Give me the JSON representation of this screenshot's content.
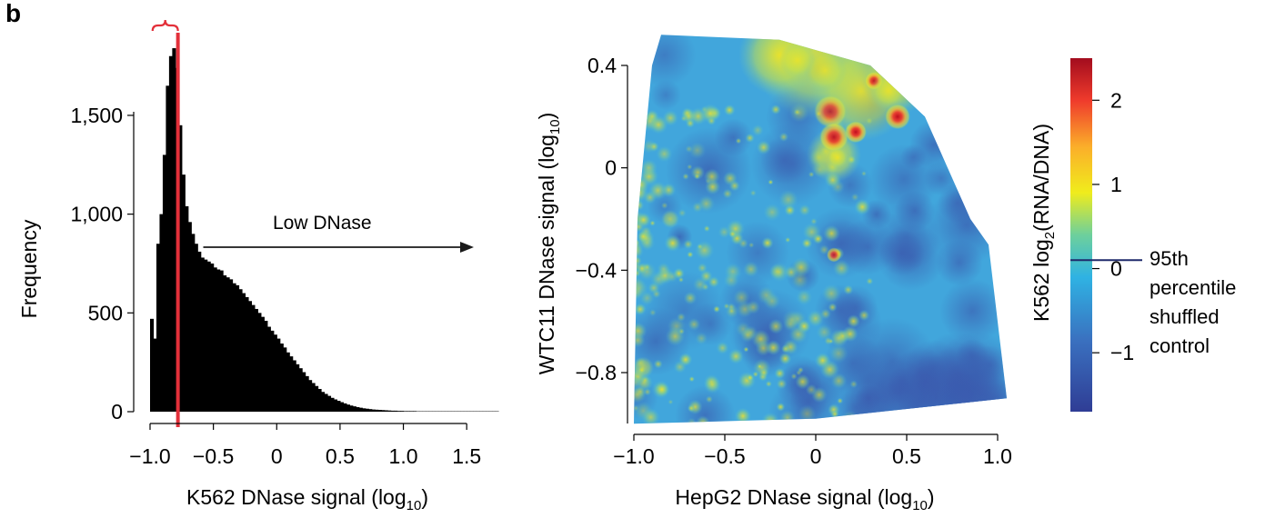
{
  "panel_label": "b",
  "colors": {
    "bars": "#000000",
    "marker": "#e3303a",
    "cutoff_line": "#1f2a6b",
    "arrow": "#1a1a1a"
  },
  "chart_data": [
    {
      "type": "bar",
      "title": "",
      "xlabel_main": "K562 DNase signal (log",
      "xlabel_sub": "10",
      "xlabel_end": ")",
      "ylabel": "Frequency",
      "xlim": [
        -1.0,
        1.75
      ],
      "ylim": [
        0,
        1900
      ],
      "xticks": [
        -1.0,
        -0.5,
        0,
        0.5,
        1.0,
        1.5
      ],
      "xtick_labels": [
        "−1.0",
        "−0.5",
        "0",
        "0.5",
        "1.0",
        "1.5"
      ],
      "yticks": [
        0,
        500,
        1000,
        1500
      ],
      "ytick_labels": [
        "0",
        "500",
        "1,000",
        "1,500"
      ],
      "bin_width": 0.025,
      "x": [
        -0.9875,
        -0.9625,
        -0.9375,
        -0.9125,
        -0.8875,
        -0.8625,
        -0.8375,
        -0.8125,
        -0.7875,
        -0.7625,
        -0.7375,
        -0.7125,
        -0.6875,
        -0.6625,
        -0.6375,
        -0.6125,
        -0.5875,
        -0.5625,
        -0.5375,
        -0.5125,
        -0.4875,
        -0.4625,
        -0.4375,
        -0.4125,
        -0.3875,
        -0.3625,
        -0.3375,
        -0.3125,
        -0.2875,
        -0.2625,
        -0.2375,
        -0.2125,
        -0.1875,
        -0.1625,
        -0.1375,
        -0.1125,
        -0.0875,
        -0.0625,
        -0.0375,
        -0.0125,
        0.0125,
        0.0375,
        0.0625,
        0.0875,
        0.1125,
        0.1375,
        0.1625,
        0.1875,
        0.2125,
        0.2375,
        0.2625,
        0.2875,
        0.3125,
        0.3375,
        0.3625,
        0.3875,
        0.4125,
        0.4375,
        0.4625,
        0.4875,
        0.5125,
        0.5375,
        0.5625,
        0.5875,
        0.6125,
        0.6375,
        0.6625,
        0.6875,
        0.7125,
        0.7375,
        0.7625,
        0.7875,
        0.8125,
        0.8375,
        0.8625,
        0.8875,
        0.9125,
        0.9375,
        0.9625,
        0.9875,
        1.0125,
        1.0375,
        1.0625,
        1.0875,
        1.1125,
        1.1375,
        1.1625,
        1.1875,
        1.2125,
        1.2375,
        1.2625,
        1.2875,
        1.3125,
        1.3375,
        1.3625,
        1.3875,
        1.4125,
        1.4375,
        1.4625,
        1.4875,
        1.5125,
        1.5375,
        1.5625,
        1.5875,
        1.6125,
        1.6375,
        1.6625,
        1.6875,
        1.7125,
        1.7375
      ],
      "values": [
        470,
        370,
        850,
        1000,
        1300,
        1650,
        1800,
        1840,
        1740,
        1450,
        1200,
        1040,
        960,
        900,
        850,
        810,
        780,
        770,
        760,
        750,
        730,
        720,
        715,
        690,
        680,
        670,
        650,
        640,
        620,
        600,
        580,
        560,
        540,
        520,
        500,
        480,
        460,
        430,
        410,
        390,
        370,
        345,
        325,
        300,
        280,
        260,
        240,
        220,
        200,
        180,
        160,
        145,
        130,
        115,
        100,
        90,
        80,
        70,
        62,
        55,
        48,
        42,
        36,
        31,
        27,
        23,
        20,
        17,
        15,
        13,
        11,
        10,
        9,
        8,
        7,
        6,
        5,
        5,
        4,
        4,
        3,
        3,
        3,
        3,
        2,
        2,
        2,
        2,
        2,
        2,
        2,
        2,
        2,
        2,
        2,
        2,
        2,
        2,
        2,
        2,
        2,
        2,
        2,
        2,
        2,
        2,
        2,
        2,
        2,
        2
      ],
      "cutoff_x": -0.78,
      "annotation": "Low DNase"
    },
    {
      "type": "heatmap",
      "title": "",
      "xlabel_main": "HepG2 DNase signal (log",
      "xlabel_sub": "10",
      "xlabel_end": ")",
      "ylabel_main": "WTC11 DNase signal (log",
      "ylabel_sub": "10",
      "ylabel_end": ")",
      "xlim": [
        -1.0,
        1.0
      ],
      "ylim": [
        -1.0,
        0.4
      ],
      "xticks": [
        -1.0,
        -0.5,
        0,
        0.5,
        1.0
      ],
      "xtick_labels": [
        "−1.0",
        "−0.5",
        "0",
        "0.5",
        "1.0"
      ],
      "yticks": [
        -0.8,
        -0.4,
        0,
        0.4
      ],
      "ytick_labels": [
        "−0.8",
        "−0.4",
        "0",
        "0.4"
      ],
      "boundary": [
        [
          -1.0,
          -1.0
        ],
        [
          -0.98,
          -0.2
        ],
        [
          -0.9,
          0.4
        ],
        [
          -0.85,
          0.52
        ],
        [
          -0.2,
          0.5
        ],
        [
          0.3,
          0.4
        ],
        [
          0.6,
          0.2
        ],
        [
          0.85,
          -0.2
        ],
        [
          0.95,
          -0.3
        ],
        [
          1.05,
          -0.9
        ],
        [
          -0.0,
          -0.98
        ]
      ],
      "hotspots": [
        {
          "x": 0.08,
          "y": 0.22,
          "value": 1.5,
          "r": 0.09
        },
        {
          "x": 0.1,
          "y": 0.12,
          "value": 2.0,
          "r": 0.08
        },
        {
          "x": 0.22,
          "y": 0.14,
          "value": 2.2,
          "r": 0.06
        },
        {
          "x": 0.45,
          "y": 0.2,
          "value": 2.3,
          "r": 0.07
        },
        {
          "x": 0.32,
          "y": 0.34,
          "value": 1.9,
          "r": 0.05
        },
        {
          "x": 0.05,
          "y": 0.38,
          "value": 1.1,
          "r": 0.12
        },
        {
          "x": 0.4,
          "y": 0.3,
          "value": 1.2,
          "r": 0.1
        },
        {
          "x": -0.1,
          "y": 0.42,
          "value": 0.9,
          "r": 0.1
        },
        {
          "x": 0.12,
          "y": 0.04,
          "value": 1.3,
          "r": 0.06
        },
        {
          "x": 0.1,
          "y": -0.34,
          "value": 1.6,
          "r": 0.04
        },
        {
          "x": -0.95,
          "y": -0.78,
          "value": 0.8,
          "r": 0.06
        },
        {
          "x": -0.8,
          "y": -0.2,
          "value": 0.6,
          "r": 0.05
        }
      ],
      "colorbar": {
        "label_main": "K562 log",
        "label_sub": "2",
        "label_end": "(RNA/DNA)",
        "range": [
          -1.7,
          2.5
        ],
        "ticks": [
          -1,
          0,
          1,
          2
        ],
        "tick_labels": [
          "−1",
          "0",
          "1",
          "2"
        ],
        "cutoff_value": 0.1,
        "cutoff_text": [
          "95th",
          "percentile",
          "shuffled",
          "control"
        ]
      }
    }
  ]
}
